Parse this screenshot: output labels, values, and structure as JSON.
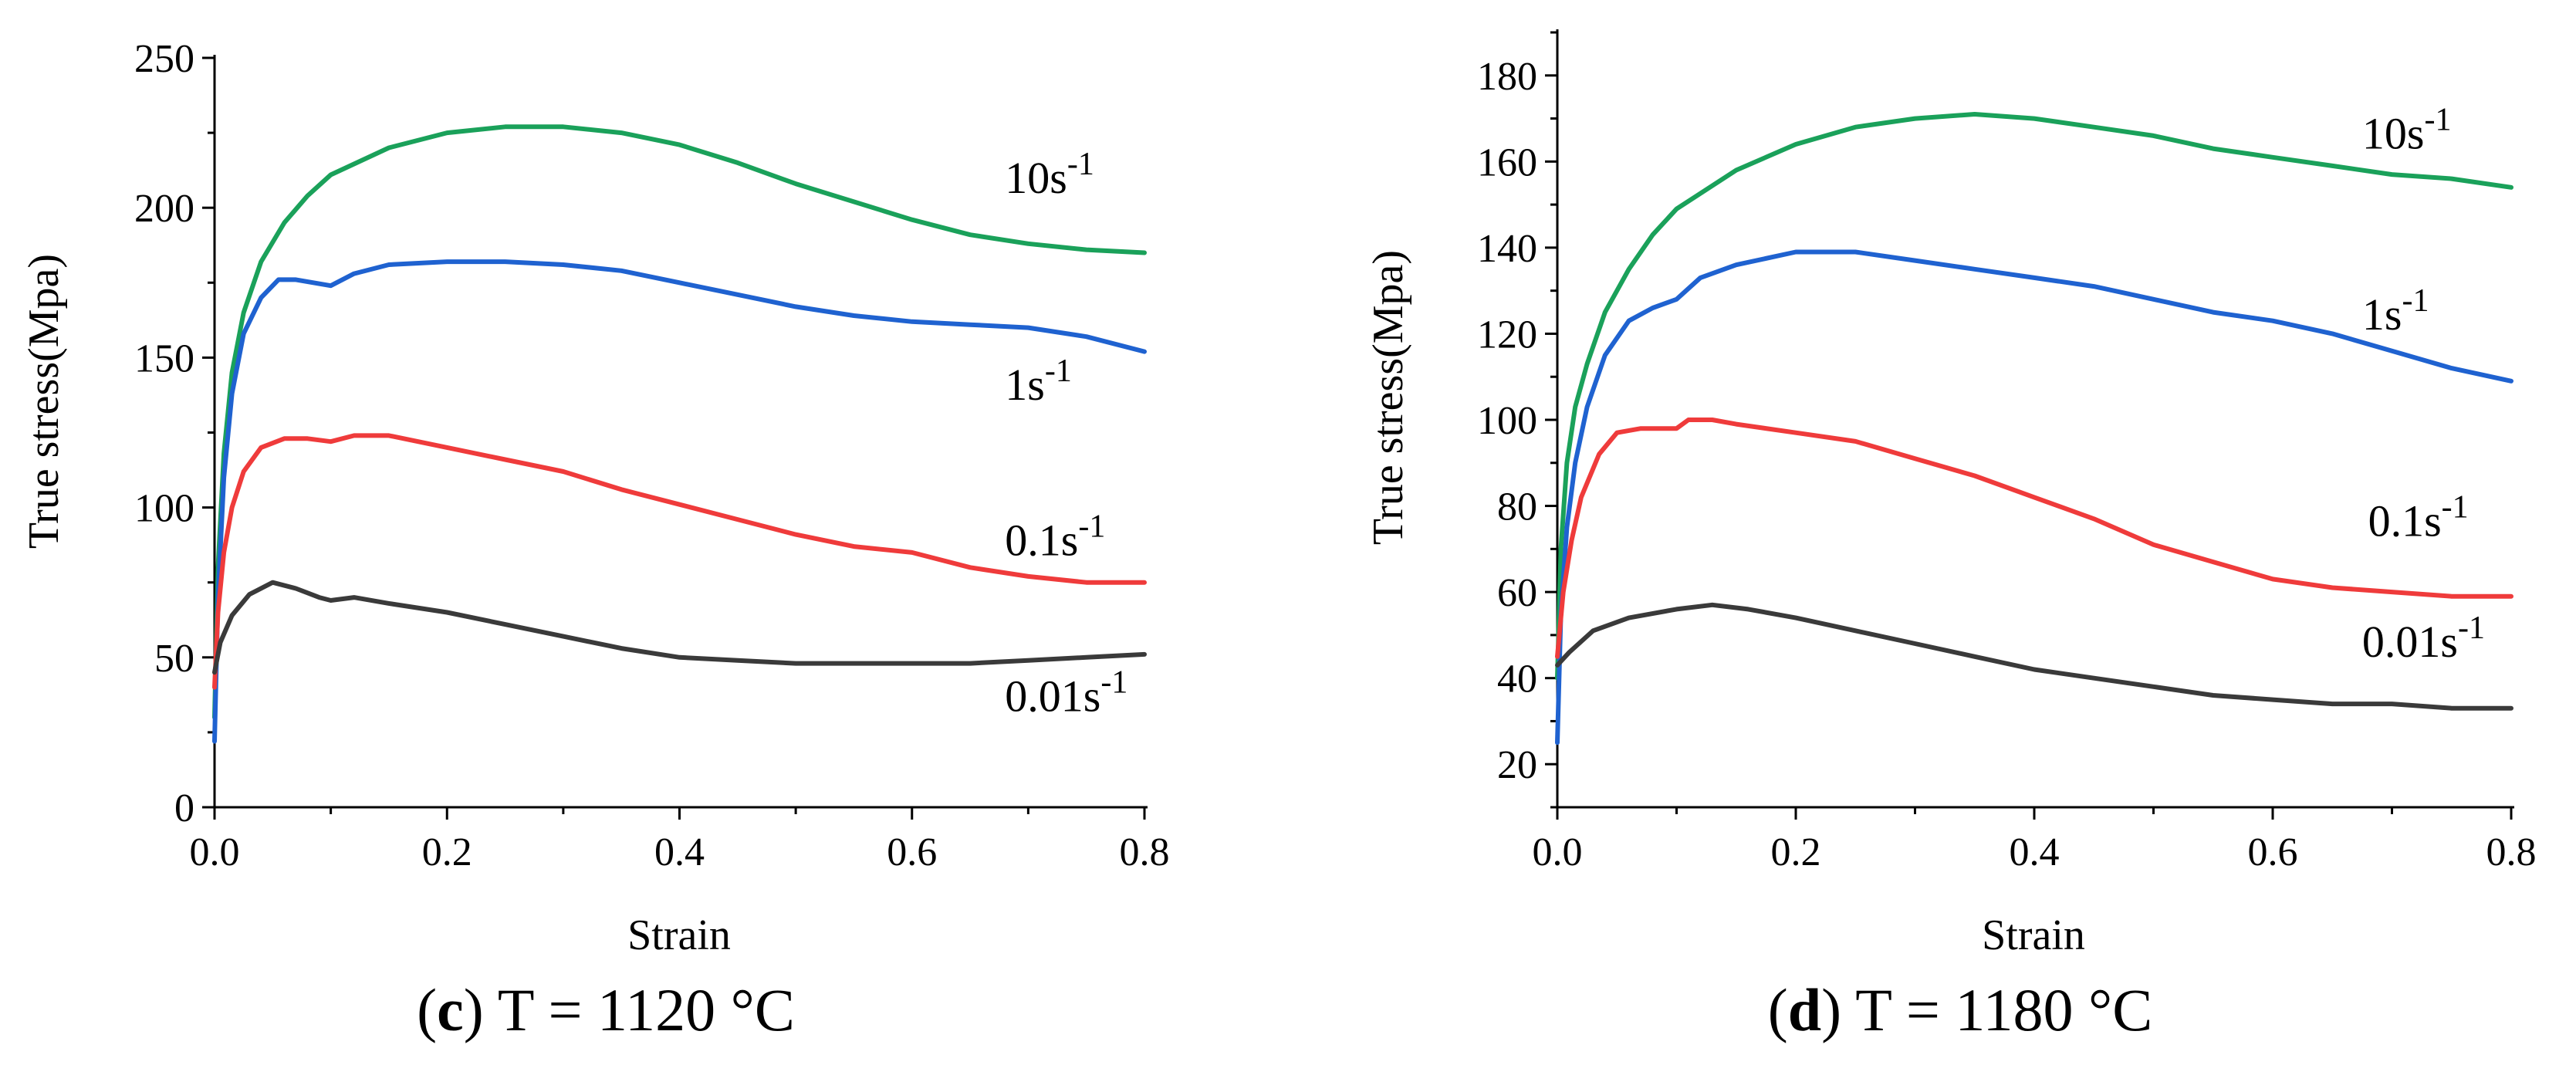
{
  "chart_data": [
    {
      "type": "line",
      "panel_letter": "c",
      "caption_rest": "T = 1120 °C",
      "xlabel": "Strain",
      "ylabel": "True  stress(Mpa)",
      "xlim": [
        0,
        0.8
      ],
      "ylim": [
        0,
        250
      ],
      "xticks": [
        0.0,
        0.2,
        0.4,
        0.6,
        0.8
      ],
      "xtick_labels": [
        "0.0",
        "0.2",
        "0.4",
        "0.6",
        "0.8"
      ],
      "yticks": [
        0,
        50,
        100,
        150,
        200,
        250
      ],
      "ytick_labels": [
        "0",
        "50",
        "100",
        "150",
        "200",
        "250"
      ],
      "series": [
        {
          "name": "10s-1",
          "label_base": "10s",
          "label_sup": "-1",
          "color": "#1aa15a",
          "points": [
            [
              0.0,
              30
            ],
            [
              0.003,
              80
            ],
            [
              0.008,
              118
            ],
            [
              0.015,
              145
            ],
            [
              0.025,
              165
            ],
            [
              0.04,
              182
            ],
            [
              0.06,
              195
            ],
            [
              0.08,
              204
            ],
            [
              0.1,
              211
            ],
            [
              0.15,
              220
            ],
            [
              0.2,
              225
            ],
            [
              0.25,
              227
            ],
            [
              0.3,
              227
            ],
            [
              0.35,
              225
            ],
            [
              0.4,
              221
            ],
            [
              0.45,
              215
            ],
            [
              0.5,
              208
            ],
            [
              0.55,
              202
            ],
            [
              0.6,
              196
            ],
            [
              0.65,
              191
            ],
            [
              0.7,
              188
            ],
            [
              0.75,
              186
            ],
            [
              0.8,
              185
            ]
          ],
          "label_anchor": [
            0.68,
            205
          ]
        },
        {
          "name": "1s-1",
          "label_base": "1s",
          "label_sup": "-1",
          "color": "#1f62d0",
          "points": [
            [
              0.0,
              22
            ],
            [
              0.003,
              70
            ],
            [
              0.008,
              110
            ],
            [
              0.015,
              138
            ],
            [
              0.025,
              158
            ],
            [
              0.04,
              170
            ],
            [
              0.055,
              176
            ],
            [
              0.07,
              176
            ],
            [
              0.085,
              175
            ],
            [
              0.1,
              174
            ],
            [
              0.12,
              178
            ],
            [
              0.15,
              181
            ],
            [
              0.2,
              182
            ],
            [
              0.25,
              182
            ],
            [
              0.3,
              181
            ],
            [
              0.35,
              179
            ],
            [
              0.4,
              175
            ],
            [
              0.45,
              171
            ],
            [
              0.5,
              167
            ],
            [
              0.55,
              164
            ],
            [
              0.6,
              162
            ],
            [
              0.65,
              161
            ],
            [
              0.7,
              160
            ],
            [
              0.75,
              157
            ],
            [
              0.8,
              152
            ]
          ],
          "label_anchor": [
            0.68,
            136
          ]
        },
        {
          "name": "0.1s-1",
          "label_base": "0.1s",
          "label_sup": "-1",
          "color": "#ef3b3b",
          "points": [
            [
              0.0,
              40
            ],
            [
              0.003,
              65
            ],
            [
              0.008,
              85
            ],
            [
              0.015,
              100
            ],
            [
              0.025,
              112
            ],
            [
              0.04,
              120
            ],
            [
              0.06,
              123
            ],
            [
              0.08,
              123
            ],
            [
              0.1,
              122
            ],
            [
              0.12,
              124
            ],
            [
              0.15,
              124
            ],
            [
              0.2,
              120
            ],
            [
              0.25,
              116
            ],
            [
              0.3,
              112
            ],
            [
              0.35,
              106
            ],
            [
              0.4,
              101
            ],
            [
              0.45,
              96
            ],
            [
              0.5,
              91
            ],
            [
              0.55,
              87
            ],
            [
              0.6,
              85
            ],
            [
              0.65,
              80
            ],
            [
              0.7,
              77
            ],
            [
              0.75,
              75
            ],
            [
              0.8,
              75
            ]
          ],
          "label_anchor": [
            0.68,
            84
          ]
        },
        {
          "name": "0.01s-1",
          "label_base": "0.01s",
          "label_sup": "-1",
          "color": "#3a3a3a",
          "points": [
            [
              0.0,
              45
            ],
            [
              0.005,
              55
            ],
            [
              0.015,
              64
            ],
            [
              0.03,
              71
            ],
            [
              0.05,
              75
            ],
            [
              0.07,
              73
            ],
            [
              0.09,
              70
            ],
            [
              0.1,
              69
            ],
            [
              0.12,
              70
            ],
            [
              0.15,
              68
            ],
            [
              0.2,
              65
            ],
            [
              0.25,
              61
            ],
            [
              0.3,
              57
            ],
            [
              0.35,
              53
            ],
            [
              0.4,
              50
            ],
            [
              0.45,
              49
            ],
            [
              0.5,
              48
            ],
            [
              0.55,
              48
            ],
            [
              0.6,
              48
            ],
            [
              0.65,
              48
            ],
            [
              0.7,
              49
            ],
            [
              0.75,
              50
            ],
            [
              0.8,
              51
            ]
          ],
          "label_anchor": [
            0.68,
            32
          ]
        }
      ]
    },
    {
      "type": "line",
      "panel_letter": "d",
      "caption_rest": "T = 1180 °C",
      "xlabel": "Strain",
      "ylabel": "True  stress(Mpa)",
      "xlim": [
        0,
        0.8
      ],
      "ylim": [
        10,
        190
      ],
      "xticks": [
        0.0,
        0.2,
        0.4,
        0.6,
        0.8
      ],
      "xtick_labels": [
        "0.0",
        "0.2",
        "0.4",
        "0.6",
        "0.8"
      ],
      "yticks": [
        20,
        40,
        60,
        80,
        100,
        120,
        140,
        160,
        180
      ],
      "ytick_labels": [
        "20",
        "40",
        "60",
        "80",
        "100",
        "120",
        "140",
        "160",
        "180"
      ],
      "series": [
        {
          "name": "10s-1",
          "label_base": "10s",
          "label_sup": "-1",
          "color": "#1aa15a",
          "points": [
            [
              0.0,
              40
            ],
            [
              0.003,
              70
            ],
            [
              0.008,
              90
            ],
            [
              0.015,
              103
            ],
            [
              0.025,
              113
            ],
            [
              0.04,
              125
            ],
            [
              0.06,
              135
            ],
            [
              0.08,
              143
            ],
            [
              0.1,
              149
            ],
            [
              0.15,
              158
            ],
            [
              0.2,
              164
            ],
            [
              0.25,
              168
            ],
            [
              0.3,
              170
            ],
            [
              0.35,
              171
            ],
            [
              0.4,
              170
            ],
            [
              0.45,
              168
            ],
            [
              0.5,
              166
            ],
            [
              0.55,
              163
            ],
            [
              0.6,
              161
            ],
            [
              0.65,
              159
            ],
            [
              0.7,
              157
            ],
            [
              0.75,
              156
            ],
            [
              0.8,
              154
            ]
          ],
          "label_anchor": [
            0.675,
            163
          ]
        },
        {
          "name": "1s-1",
          "label_base": "1s",
          "label_sup": "-1",
          "color": "#1f62d0",
          "points": [
            [
              0.0,
              25
            ],
            [
              0.003,
              55
            ],
            [
              0.008,
              75
            ],
            [
              0.015,
              90
            ],
            [
              0.025,
              103
            ],
            [
              0.04,
              115
            ],
            [
              0.06,
              123
            ],
            [
              0.08,
              126
            ],
            [
              0.1,
              128
            ],
            [
              0.12,
              133
            ],
            [
              0.15,
              136
            ],
            [
              0.2,
              139
            ],
            [
              0.25,
              139
            ],
            [
              0.3,
              137
            ],
            [
              0.35,
              135
            ],
            [
              0.4,
              133
            ],
            [
              0.45,
              131
            ],
            [
              0.5,
              128
            ],
            [
              0.55,
              125
            ],
            [
              0.6,
              123
            ],
            [
              0.65,
              120
            ],
            [
              0.7,
              116
            ],
            [
              0.75,
              112
            ],
            [
              0.8,
              109
            ]
          ],
          "label_anchor": [
            0.675,
            121
          ]
        },
        {
          "name": "0.1s-1",
          "label_base": "0.1s",
          "label_sup": "-1",
          "color": "#ef3b3b",
          "points": [
            [
              0.0,
              45
            ],
            [
              0.005,
              60
            ],
            [
              0.012,
              72
            ],
            [
              0.02,
              82
            ],
            [
              0.035,
              92
            ],
            [
              0.05,
              97
            ],
            [
              0.07,
              98
            ],
            [
              0.09,
              98
            ],
            [
              0.1,
              98
            ],
            [
              0.11,
              100
            ],
            [
              0.13,
              100
            ],
            [
              0.15,
              99
            ],
            [
              0.2,
              97
            ],
            [
              0.25,
              95
            ],
            [
              0.3,
              91
            ],
            [
              0.35,
              87
            ],
            [
              0.4,
              82
            ],
            [
              0.45,
              77
            ],
            [
              0.5,
              71
            ],
            [
              0.55,
              67
            ],
            [
              0.6,
              63
            ],
            [
              0.65,
              61
            ],
            [
              0.7,
              60
            ],
            [
              0.75,
              59
            ],
            [
              0.8,
              59
            ]
          ],
          "label_anchor": [
            0.68,
            73
          ]
        },
        {
          "name": "0.01s-1",
          "label_base": "0.01s",
          "label_sup": "-1",
          "color": "#3a3a3a",
          "points": [
            [
              0.0,
              43
            ],
            [
              0.01,
              46
            ],
            [
              0.03,
              51
            ],
            [
              0.06,
              54
            ],
            [
              0.1,
              56
            ],
            [
              0.13,
              57
            ],
            [
              0.16,
              56
            ],
            [
              0.2,
              54
            ],
            [
              0.25,
              51
            ],
            [
              0.3,
              48
            ],
            [
              0.35,
              45
            ],
            [
              0.4,
              42
            ],
            [
              0.45,
              40
            ],
            [
              0.5,
              38
            ],
            [
              0.55,
              36
            ],
            [
              0.6,
              35
            ],
            [
              0.65,
              34
            ],
            [
              0.7,
              34
            ],
            [
              0.75,
              33
            ],
            [
              0.8,
              33
            ]
          ],
          "label_anchor": [
            0.675,
            45
          ]
        }
      ]
    }
  ]
}
